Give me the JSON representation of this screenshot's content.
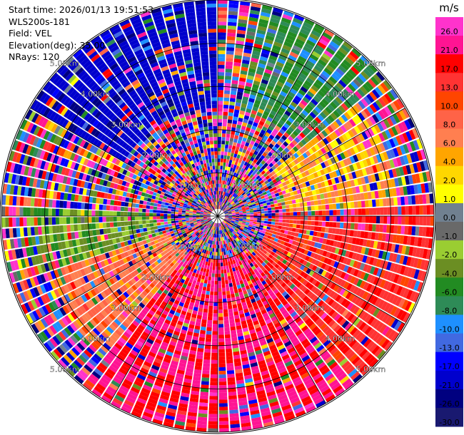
{
  "header": {
    "start_time": "Start time: 2026/01/13 19:51:53",
    "instrument": "WLS200s-181",
    "field": "Field: VEL",
    "elevation": "Elevation(deg): 35.00",
    "nrays": "NRays: 120"
  },
  "chart_data": {
    "type": "heatmap",
    "projection": "polar-ppi",
    "field": "VEL",
    "units": "m/s",
    "n_rays": 120,
    "range_rings": [
      {
        "label": "1.00km"
      },
      {
        "label": "2.00km"
      },
      {
        "label": "3.00km"
      },
      {
        "label": "4.00km"
      },
      {
        "label": "5.00km"
      }
    ],
    "colorbar": {
      "unit_label": "m/s",
      "ticks": [
        "26.0",
        "21.0",
        "17.0",
        "13.0",
        "10.0",
        "8.0",
        "6.0",
        "4.0",
        "2.0",
        "1.0",
        "0.0",
        "-1.0",
        "-2.0",
        "-4.0",
        "-6.0",
        "-8.0",
        "-10.0",
        "-13.0",
        "-17.0",
        "-21.0",
        "-26.0",
        "-30.0"
      ],
      "colors": [
        "#ff33cc",
        "#ff1493",
        "#ff0000",
        "#ff3333",
        "#ff4500",
        "#ff6347",
        "#ff7f50",
        "#ffa500",
        "#ffd700",
        "#ffff00",
        "#708090",
        "#696969",
        "#9acd32",
        "#6b8e23",
        "#228b22",
        "#2e8b57",
        "#1e90ff",
        "#4169e1",
        "#0000ff",
        "#0000cd",
        "#000080",
        "#191970"
      ]
    },
    "coherent_regions": [
      {
        "az_from": 12,
        "az_to": 52,
        "r_from": 2.5,
        "r_to": 5.0,
        "value": -8.0
      },
      {
        "az_from": 52,
        "az_to": 86,
        "r_from": 1.6,
        "r_to": 4.2,
        "value": 3.0
      },
      {
        "az_from": 86,
        "az_to": 140,
        "r_from": 1.2,
        "r_to": 5.0,
        "value": 12.0
      },
      {
        "az_from": 140,
        "az_to": 220,
        "r_from": 1.0,
        "r_to": 5.0,
        "value": 17.0
      },
      {
        "az_from": 220,
        "az_to": 252,
        "r_from": 1.2,
        "r_to": 4.2,
        "value": 6.0
      },
      {
        "az_from": 252,
        "az_to": 272,
        "r_from": 1.4,
        "r_to": 4.4,
        "value": -5.0
      },
      {
        "az_from": 300,
        "az_to": 360,
        "r_from": 2.5,
        "r_to": 5.0,
        "value": -24.0
      }
    ]
  }
}
